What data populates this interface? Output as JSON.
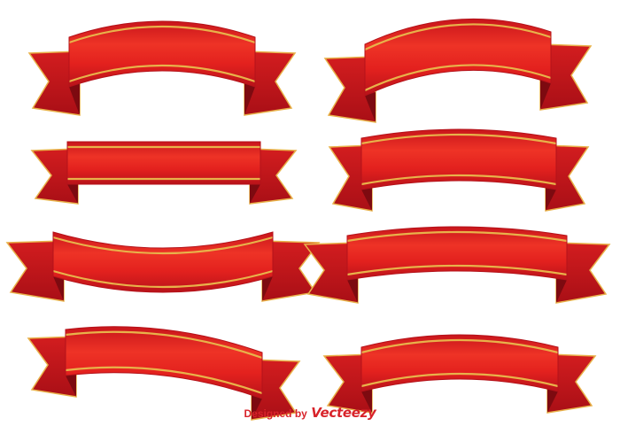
{
  "credit": {
    "prefix": "Designed by",
    "brand": "Vecteezy"
  },
  "colors": {
    "ribbon_red": "#e3211e",
    "ribbon_light": "#f23d2f",
    "ribbon_dark": "#b4121a",
    "fold_shadow": "#7d0a10",
    "gold_trim": "#e8b24a",
    "credit_red": "#d8232a",
    "background": "#ffffff"
  },
  "ribbons": [
    {
      "name": "ribbon-arch-top-left"
    },
    {
      "name": "ribbon-wave-top-right"
    },
    {
      "name": "ribbon-straight-left"
    },
    {
      "name": "ribbon-bulge-right"
    },
    {
      "name": "ribbon-smile-left"
    },
    {
      "name": "ribbon-smile-right"
    },
    {
      "name": "ribbon-wave-bottom-left"
    },
    {
      "name": "ribbon-wave-bottom-right"
    }
  ]
}
